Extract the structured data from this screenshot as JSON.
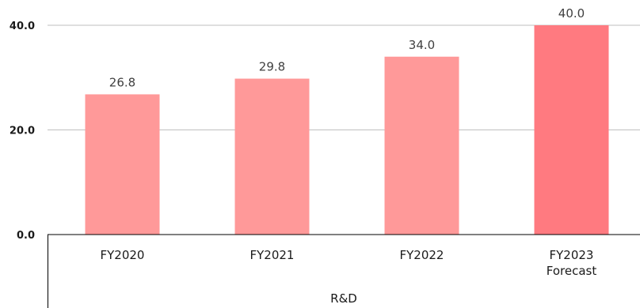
{
  "chart_data": {
    "type": "bar",
    "title": "",
    "xlabel": "",
    "ylabel": "",
    "group_label": "R&D",
    "categories": [
      [
        "FY2020"
      ],
      [
        "FY2021"
      ],
      [
        "FY2022"
      ],
      [
        "FY2023",
        "Forecast"
      ]
    ],
    "values": [
      26.8,
      29.8,
      34.0,
      40.0
    ],
    "value_labels": [
      "26.8",
      "29.8",
      "34.0",
      "40.0"
    ],
    "ylim": [
      0,
      40
    ],
    "yticks": [
      0,
      20,
      40
    ],
    "ytick_labels": [
      "0.0",
      "20.0",
      "40.0"
    ],
    "grid": true,
    "legend": false,
    "colors": {
      "actual": "#ff9999",
      "forecast": "#ff7a80",
      "grid": "#bfbfbf",
      "axis": "#000000"
    }
  }
}
